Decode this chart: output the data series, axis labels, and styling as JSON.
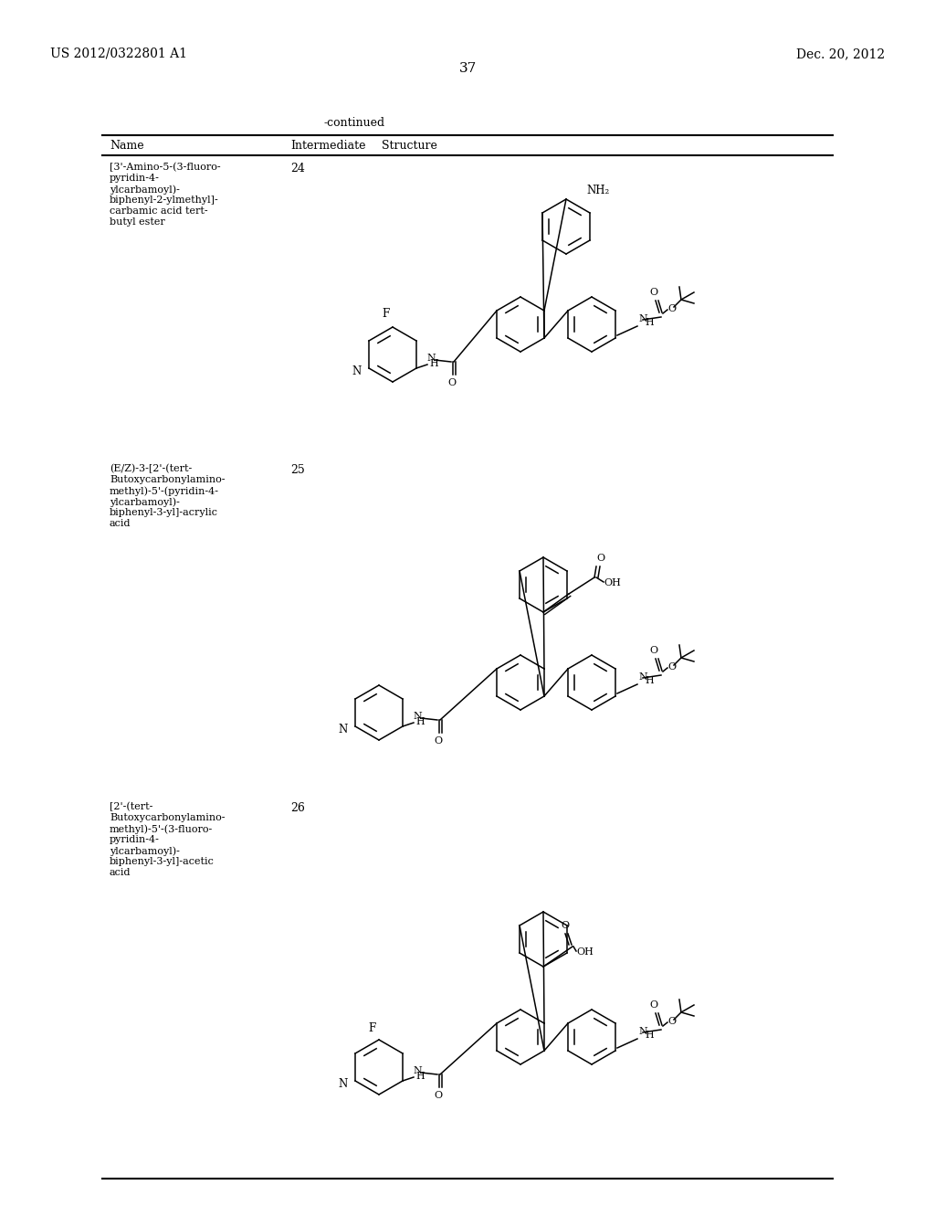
{
  "background_color": "#ffffff",
  "page_number": "37",
  "top_left_text": "US 2012/0322801 A1",
  "top_right_text": "Dec. 20, 2012",
  "continued_text": "-continued",
  "table_col1": "Name",
  "table_col2": "Intermediate",
  "table_col3": "Structure",
  "row1_name": [
    "[3'-Amino-5-(3-fluoro-",
    "pyridin-4-",
    "ylcarbamoyl)-",
    "biphenyl-2-ylmethyl]-",
    "carbamic acid tert-",
    "butyl ester"
  ],
  "row1_num": "24",
  "row2_name": [
    "(E/Z)-3-[2'-(tert-",
    "Butoxycarbonylamino-",
    "methyl)-5'-(pyridin-4-",
    "ylcarbamoyl)-",
    "biphenyl-3-yl]-acrylic",
    "acid"
  ],
  "row2_num": "25",
  "row3_name": [
    "[2'-(tert-",
    "Butoxycarbonylamino-",
    "methyl)-5'-(3-fluoro-",
    "pyridin-4-",
    "ylcarbamoyl)-",
    "biphenyl-3-yl]-acetic",
    "acid"
  ],
  "row3_num": "26",
  "line_color": "#000000",
  "text_color": "#000000"
}
